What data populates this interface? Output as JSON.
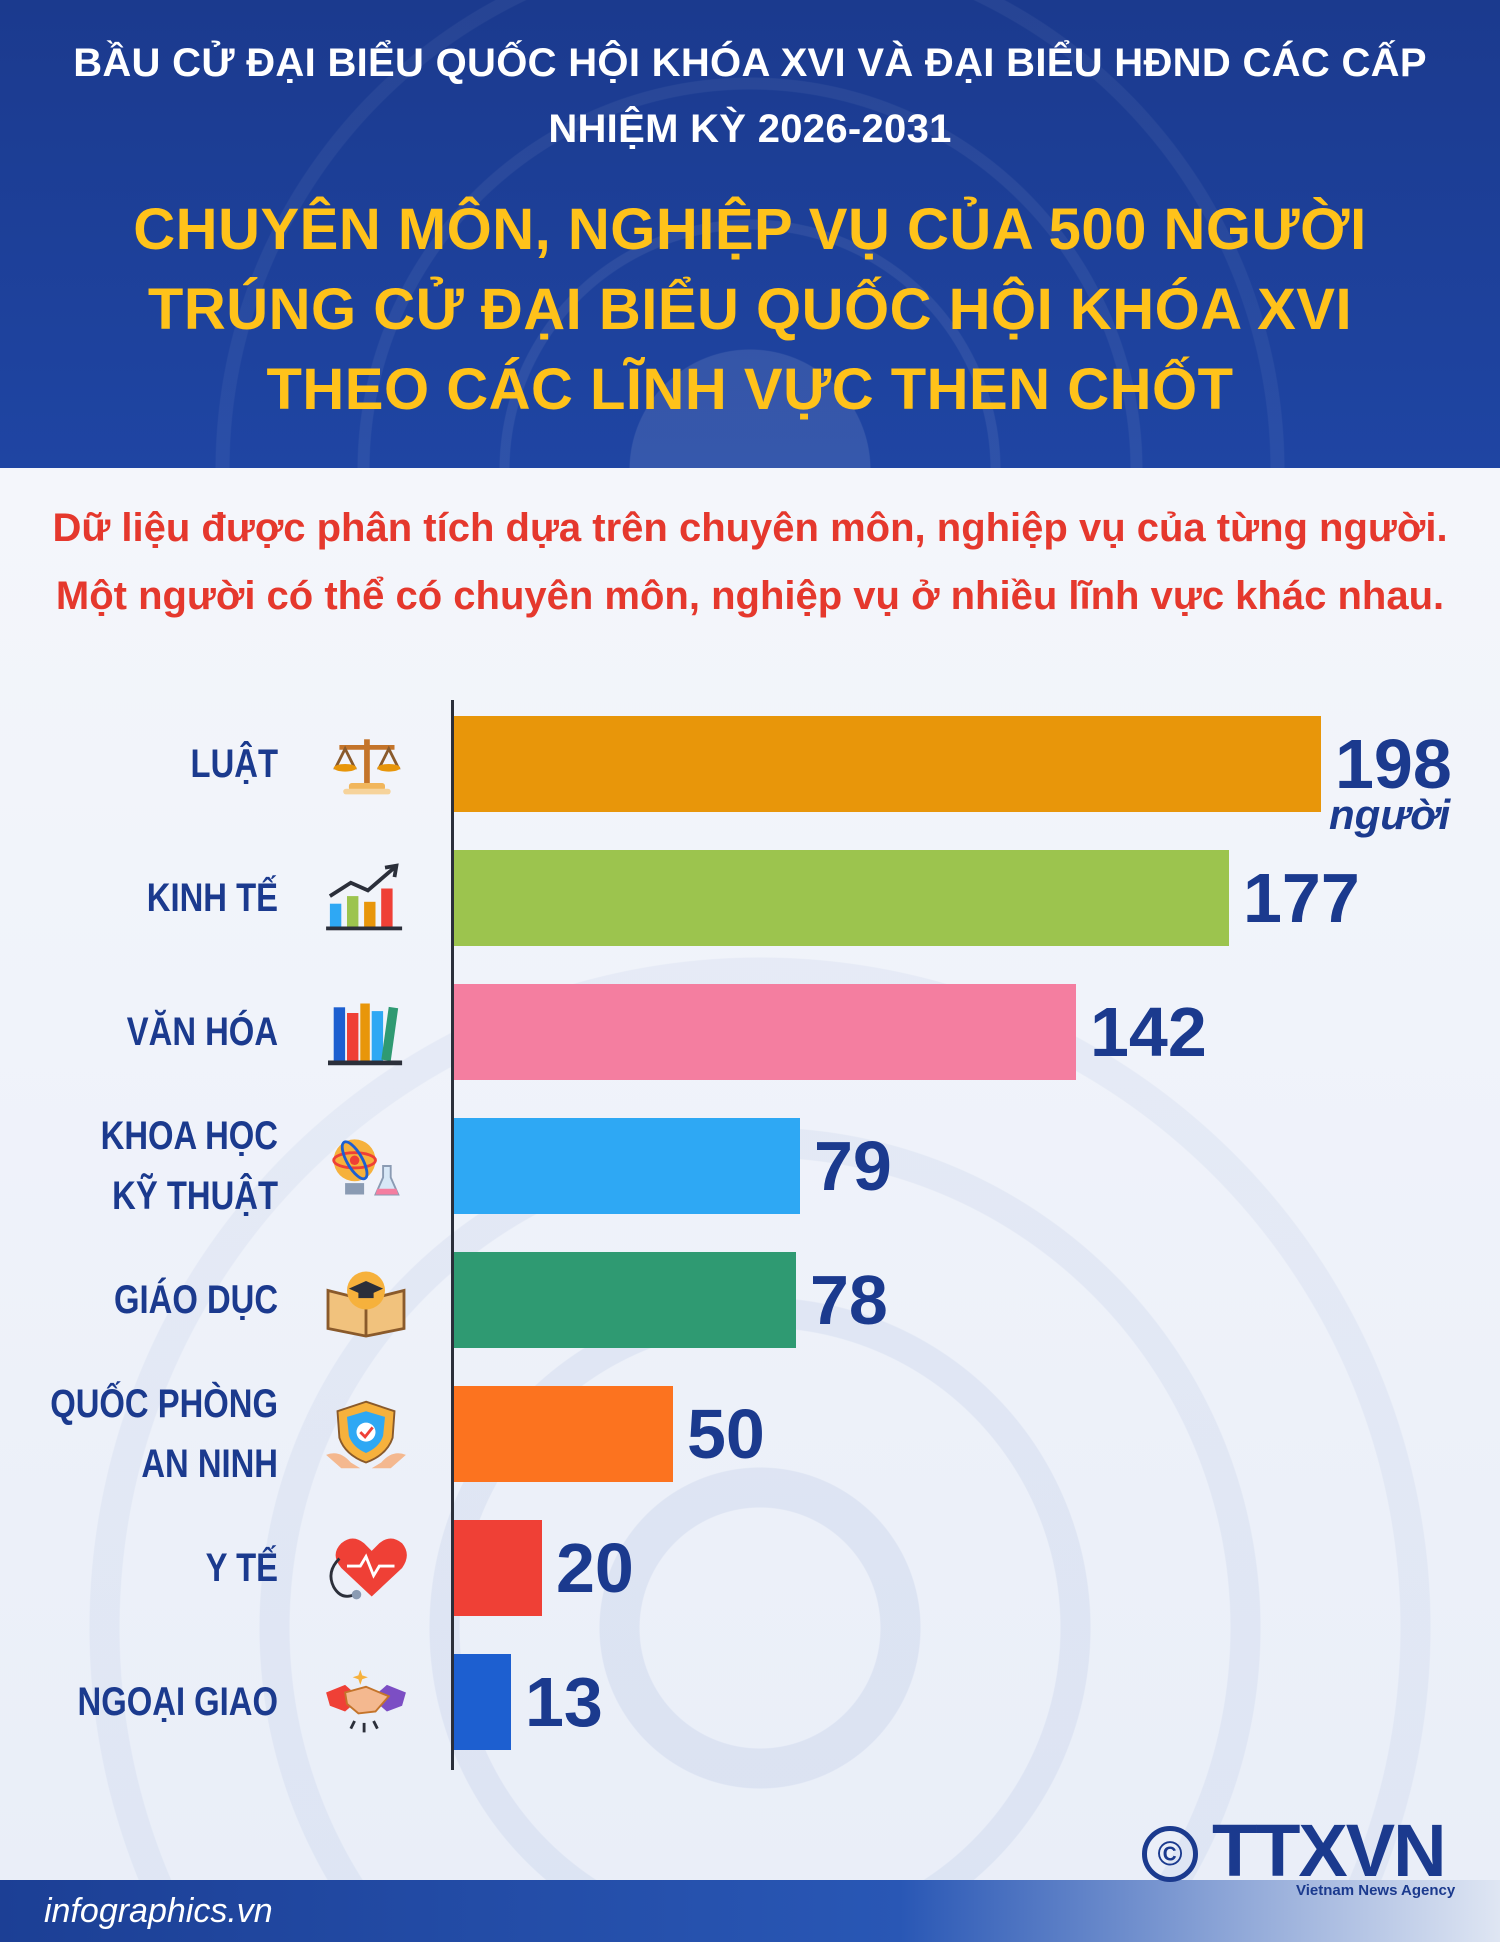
{
  "header": {
    "top_title_lines": [
      "BẦU CỬ ĐẠI BIỂU QUỐC HỘI KHÓA XVI VÀ ĐẠI BIỂU HĐND CÁC CẤP",
      "NHIỆM KỲ 2026-2031"
    ],
    "main_title_lines": [
      "CHUYÊN MÔN, NGHIỆP VỤ CỦA 500 NGƯỜI",
      "TRÚNG CỬ ĐẠI BIỂU QUỐC HỘI KHÓA XVI",
      "THEO CÁC LĨNH VỰC THEN CHỐT"
    ]
  },
  "note_lines": [
    "Dữ liệu được phân tích dựa trên chuyên môn, nghiệp vụ của từng người.",
    "Một người có thể có chuyên môn, nghiệp vụ ở nhiều lĩnh vực khác nhau."
  ],
  "chart_data": {
    "type": "bar",
    "orientation": "horizontal",
    "categories": [
      "LUẬT",
      "KINH TẾ",
      "VĂN HÓA",
      "KHOA HỌC\nKỸ THUẬT",
      "GIÁO DỤC",
      "QUỐC PHÒNG\nAN NINH",
      "Y TẾ",
      "NGOẠI GIAO"
    ],
    "values": [
      198,
      177,
      142,
      79,
      78,
      50,
      20,
      13
    ],
    "unit": "người",
    "bar_colors": [
      "#e8960a",
      "#9cc44e",
      "#f47ea0",
      "#2ea8f4",
      "#2f9a72",
      "#fc731f",
      "#ef4036",
      "#1d5fd0"
    ],
    "icons": [
      "scales-icon",
      "growth-chart-icon",
      "books-icon",
      "science-icon",
      "education-book-icon",
      "shield-icon",
      "heart-stethoscope-icon",
      "handshake-icon"
    ],
    "xlim": [
      0,
      200
    ],
    "grid": false,
    "legend": "none"
  },
  "footer": {
    "site": "infographics.vn",
    "copyright_symbol": "©",
    "brand": "TTXVN",
    "brand_sub": "Vietnam News Agency"
  }
}
